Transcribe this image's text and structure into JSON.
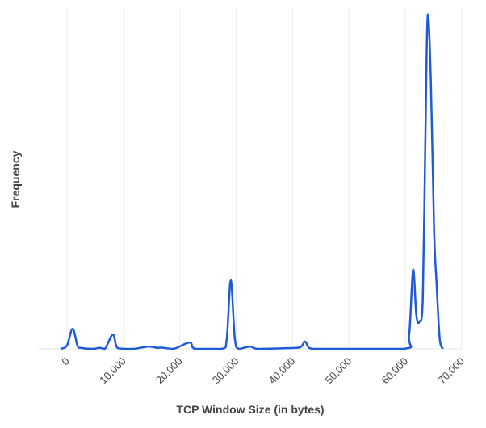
{
  "chart_data": {
    "type": "line",
    "x_label": "TCP Window Size (in bytes)",
    "y_label": "Frequency",
    "xlim": [
      -5000,
      70000
    ],
    "ylim": [
      0,
      100
    ],
    "xticks": [
      0,
      {
        "value": 10000,
        "label": "10,000"
      },
      {
        "value": 20000,
        "label": "20,000"
      },
      {
        "value": 30000,
        "label": "30,000"
      },
      {
        "value": 40000,
        "label": "40,000"
      },
      {
        "value": 50000,
        "label": "50,000"
      },
      {
        "value": 60000,
        "label": "60,000"
      },
      {
        "value": 70000,
        "label": "70,000"
      }
    ],
    "grid": true,
    "series": [
      {
        "color": "#1f5bd6",
        "x": [
          -1150,
          0,
          1000,
          1860,
          2430,
          4580,
          5720,
          6720,
          8150,
          9010,
          11730,
          14450,
          16020,
          16740,
          18880,
          21750,
          22750,
          27470,
          28330,
          29040,
          29760,
          30470,
          32480,
          33900,
          38910,
          41350,
          42200,
          43060,
          45350,
          59660,
          60660,
          61370,
          61950,
          62520,
          63090,
          63520,
          63950,
          64520,
          65090,
          65520,
          66090,
          66660
        ],
        "values": [
          0,
          1,
          6,
          1,
          0.3,
          0,
          0.3,
          0,
          4.3,
          0.2,
          0,
          0.7,
          0.3,
          0.4,
          0,
          1.9,
          0,
          0,
          3,
          20.5,
          3,
          0,
          0.7,
          0,
          0.2,
          0.5,
          2.2,
          0.2,
          0,
          0,
          4,
          23.7,
          10,
          8.2,
          15,
          60,
          99.5,
          80,
          35.5,
          20,
          3,
          0
        ]
      }
    ]
  }
}
